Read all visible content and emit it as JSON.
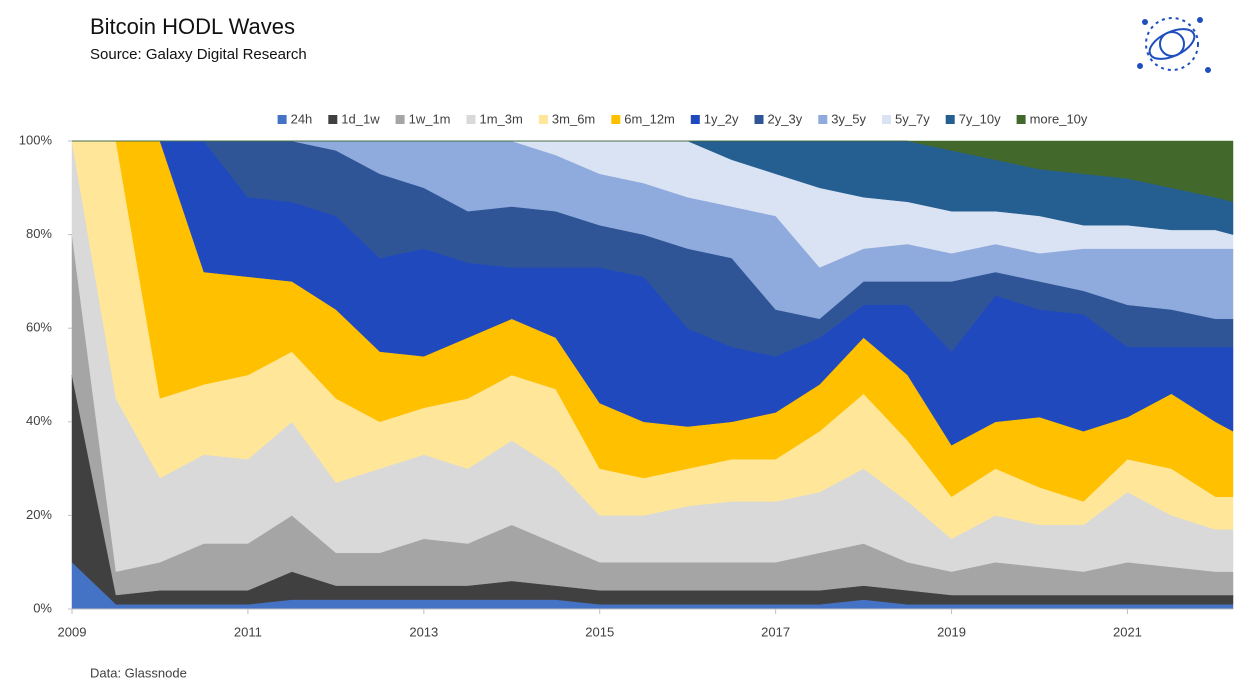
{
  "chart_data": {
    "type": "stacked_area",
    "title": "Bitcoin HODL Waves",
    "subtitle": "Source: Galaxy Digital Research",
    "footnote": "Data: Glassnode",
    "legend": "top",
    "x": [
      2009,
      2009.5,
      2010,
      2010.5,
      2011,
      2011.5,
      2012,
      2012.5,
      2013,
      2013.5,
      2014,
      2014.5,
      2015,
      2015.5,
      2016,
      2016.5,
      2017,
      2017.5,
      2018,
      2018.5,
      2019,
      2019.5,
      2020,
      2020.5,
      2021,
      2021.5,
      2022,
      2022.2
    ],
    "xlim": [
      2009,
      2022.2
    ],
    "xticks": [
      2009,
      2011,
      2013,
      2015,
      2017,
      2019,
      2021
    ],
    "ylim": [
      0,
      100
    ],
    "yticks": [
      {
        "value": 0,
        "label": "0%"
      },
      {
        "value": 20,
        "label": "20%"
      },
      {
        "value": 40,
        "label": "40%"
      },
      {
        "value": 60,
        "label": "60%"
      },
      {
        "value": 80,
        "label": "80%"
      },
      {
        "value": 100,
        "label": "100%"
      }
    ],
    "series": [
      {
        "name": "24h",
        "color": "#4472c4",
        "values": [
          10,
          1,
          1,
          1,
          1,
          2,
          2,
          2,
          2,
          2,
          2,
          2,
          1,
          1,
          1,
          1,
          1,
          1,
          2,
          1,
          1,
          1,
          1,
          1,
          1,
          1,
          1,
          1
        ]
      },
      {
        "name": "1d_1w",
        "color": "#404040",
        "values": [
          40,
          2,
          3,
          3,
          3,
          6,
          3,
          3,
          3,
          3,
          4,
          3,
          3,
          3,
          3,
          3,
          3,
          3,
          3,
          3,
          2,
          2,
          2,
          2,
          2,
          2,
          2,
          2
        ]
      },
      {
        "name": "1w_1m",
        "color": "#a5a5a5",
        "values": [
          30,
          5,
          6,
          10,
          10,
          12,
          7,
          7,
          10,
          9,
          12,
          9,
          6,
          6,
          6,
          6,
          6,
          8,
          9,
          6,
          5,
          7,
          6,
          5,
          7,
          6,
          5,
          5
        ]
      },
      {
        "name": "1m_3m",
        "color": "#d9d9d9",
        "values": [
          20,
          37,
          18,
          19,
          18,
          20,
          15,
          18,
          18,
          16,
          18,
          16,
          10,
          10,
          12,
          13,
          13,
          13,
          16,
          13,
          7,
          10,
          9,
          10,
          15,
          11,
          9,
          9
        ]
      },
      {
        "name": "3m_6m",
        "color": "#ffe699",
        "values": [
          0,
          55,
          17,
          15,
          18,
          15,
          18,
          10,
          10,
          15,
          14,
          17,
          10,
          8,
          8,
          9,
          9,
          13,
          16,
          13,
          9,
          10,
          8,
          5,
          7,
          10,
          7,
          7
        ]
      },
      {
        "name": "6m_12m",
        "color": "#ffc000",
        "values": [
          0,
          0,
          55,
          24,
          21,
          15,
          19,
          15,
          11,
          13,
          12,
          11,
          14,
          12,
          9,
          8,
          10,
          10,
          12,
          14,
          11,
          10,
          15,
          15,
          9,
          16,
          16,
          14
        ]
      },
      {
        "name": "1y_2y",
        "color": "#2049bd",
        "values": [
          0,
          0,
          0,
          28,
          17,
          17,
          20,
          20,
          23,
          16,
          11,
          15,
          29,
          31,
          21,
          16,
          12,
          10,
          7,
          15,
          20,
          27,
          23,
          25,
          15,
          10,
          16,
          18
        ]
      },
      {
        "name": "2y_3y",
        "color": "#2f5597",
        "values": [
          0,
          0,
          0,
          0,
          12,
          13,
          14,
          18,
          13,
          11,
          13,
          12,
          9,
          9,
          17,
          19,
          10,
          4,
          5,
          5,
          15,
          5,
          6,
          5,
          9,
          8,
          6,
          6
        ]
      },
      {
        "name": "3y_5y",
        "color": "#8faadc",
        "values": [
          0,
          0,
          0,
          0,
          0,
          0,
          2,
          7,
          10,
          15,
          14,
          12,
          11,
          11,
          11,
          11,
          20,
          11,
          7,
          8,
          6,
          6,
          6,
          9,
          12,
          13,
          15,
          15
        ]
      },
      {
        "name": "5y_7y",
        "color": "#dae3f3",
        "values": [
          0,
          0,
          0,
          0,
          0,
          0,
          0,
          0,
          0,
          0,
          0,
          3,
          7,
          9,
          12,
          10,
          9,
          17,
          11,
          9,
          9,
          7,
          8,
          5,
          5,
          4,
          4,
          3
        ]
      },
      {
        "name": "7y_10y",
        "color": "#255e91",
        "values": [
          0,
          0,
          0,
          0,
          0,
          0,
          0,
          0,
          0,
          0,
          0,
          0,
          0,
          0,
          0,
          4,
          7,
          10,
          12,
          13,
          13,
          11,
          10,
          11,
          10,
          9,
          7,
          7
        ]
      },
      {
        "name": "more_10y",
        "color": "#43682b",
        "values": [
          0,
          0,
          0,
          0,
          0,
          0,
          0,
          0,
          0,
          0,
          0,
          0,
          0,
          0,
          0,
          0,
          0,
          0,
          0,
          0,
          2,
          4,
          6,
          7,
          8,
          10,
          12,
          13
        ]
      }
    ]
  }
}
